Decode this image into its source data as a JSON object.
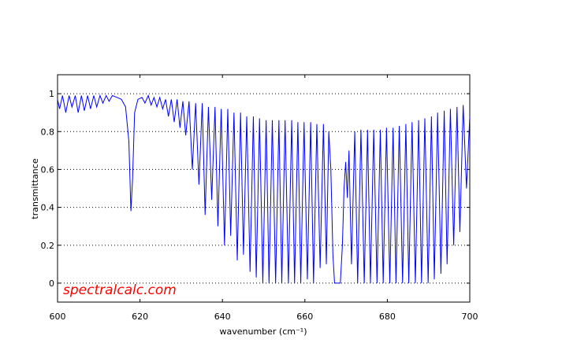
{
  "chart_data": {
    "type": "line",
    "xlabel": "wavenumber (cm⁻¹)",
    "ylabel": "transmittance",
    "annotation": "spectralcalc.com",
    "xlim": [
      600,
      700
    ],
    "xticks": [
      600,
      620,
      640,
      660,
      680,
      700
    ],
    "ylim": [
      -0.1,
      1.1
    ],
    "yticks": [
      0,
      0.2,
      0.4,
      0.6,
      0.8,
      1
    ],
    "grid": true,
    "series": [
      {
        "color": "#0000ff",
        "x": [
          600,
          600.5,
          601.2,
          602,
          602.8,
          603.5,
          604.3,
          605,
          605.8,
          606.5,
          607.3,
          608,
          608.8,
          609.5,
          610.3,
          611,
          611.8,
          612.5,
          613.3,
          614.5,
          615.5,
          616.5,
          617.3,
          617.8,
          618.2,
          618.7,
          619.5,
          620.5,
          621.2,
          622,
          622.7,
          623.4,
          624.1,
          624.8,
          625.5,
          626.2,
          626.9,
          627.6,
          628.3,
          629,
          629.7,
          630.4,
          631.1,
          631.9,
          632.7,
          633.5,
          634.3,
          635.1,
          635.8,
          636.6,
          637.4,
          638.2,
          638.9,
          639.7,
          640.5,
          641.3,
          642,
          642.8,
          643.6,
          644.4,
          645.1,
          645.9,
          646.7,
          647.5,
          648.2,
          649,
          649.8,
          650.6,
          651.3,
          652.1,
          652.9,
          653.7,
          654.4,
          655.2,
          656,
          656.8,
          657.5,
          658.3,
          659,
          659.8,
          660.6,
          661.4,
          662.1,
          662.9,
          663.7,
          664.5,
          665.2,
          665.8,
          666.3,
          666.8,
          667.2,
          668.6,
          669.1,
          669.5,
          669.9,
          670.3,
          670.7,
          671.3,
          672.1,
          672.8,
          673.6,
          674.4,
          675.2,
          675.9,
          676.7,
          677.5,
          678.3,
          679,
          679.8,
          680.6,
          681.4,
          682.1,
          682.9,
          683.7,
          684.5,
          685.2,
          686,
          686.8,
          687.6,
          688.3,
          689.1,
          689.9,
          690.7,
          691.4,
          692.2,
          693,
          693.8,
          694.5,
          695.3,
          696.1,
          696.9,
          697.6,
          698.4,
          699.2,
          700
        ],
        "values": [
          0.97,
          0.92,
          0.99,
          0.9,
          0.99,
          0.93,
          0.99,
          0.9,
          0.99,
          0.91,
          0.99,
          0.92,
          0.99,
          0.93,
          0.99,
          0.95,
          0.99,
          0.96,
          0.99,
          0.98,
          0.97,
          0.93,
          0.75,
          0.38,
          0.55,
          0.9,
          0.97,
          0.98,
          0.95,
          0.99,
          0.94,
          0.98,
          0.93,
          0.98,
          0.92,
          0.97,
          0.88,
          0.97,
          0.85,
          0.97,
          0.82,
          0.96,
          0.78,
          0.96,
          0.6,
          0.95,
          0.52,
          0.95,
          0.36,
          0.93,
          0.44,
          0.93,
          0.3,
          0.92,
          0.2,
          0.92,
          0.25,
          0.9,
          0.12,
          0.9,
          0.15,
          0.88,
          0.06,
          0.88,
          0.03,
          0.87,
          0,
          0.86,
          0,
          0.86,
          0,
          0.86,
          0,
          0.86,
          0,
          0.86,
          0,
          0.85,
          0,
          0.85,
          0.02,
          0.85,
          0,
          0.84,
          0.08,
          0.84,
          0.1,
          0.8,
          0.6,
          0.15,
          0,
          0,
          0.2,
          0.5,
          0.64,
          0.45,
          0.7,
          0.1,
          0.8,
          0,
          0.81,
          0,
          0.81,
          0,
          0.81,
          0,
          0.81,
          0,
          0.82,
          0,
          0.82,
          0,
          0.83,
          0,
          0.84,
          0,
          0.85,
          0,
          0.86,
          0,
          0.87,
          0,
          0.88,
          0.02,
          0.9,
          0.05,
          0.91,
          0.1,
          0.92,
          0.2,
          0.93,
          0.27,
          0.94,
          0.5,
          0.88
        ]
      }
    ]
  }
}
